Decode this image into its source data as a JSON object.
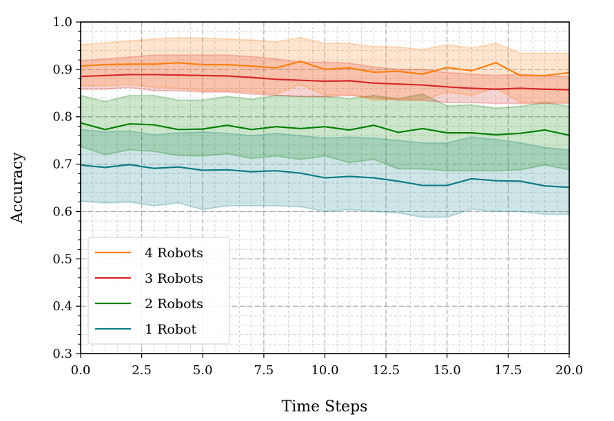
{
  "chart_data": {
    "type": "line",
    "title": "",
    "xlabel": "Time Steps",
    "ylabel": "Accuracy",
    "xlim": [
      0,
      20
    ],
    "ylim": [
      0.3,
      1.0
    ],
    "xticks": [
      "0.0",
      "2.5",
      "5.0",
      "7.5",
      "10.0",
      "12.5",
      "15.0",
      "17.5",
      "20.0"
    ],
    "yticks": [
      "0.3",
      "0.4",
      "0.5",
      "0.6",
      "0.7",
      "0.8",
      "0.9",
      "1.0"
    ],
    "grid": true,
    "legend_position": "lower-left",
    "x": [
      0,
      1,
      2,
      3,
      4,
      5,
      6,
      7,
      8,
      9,
      10,
      11,
      12,
      13,
      14,
      15,
      16,
      17,
      18,
      19,
      20
    ],
    "series": [
      {
        "name": "4 Robots",
        "color": "#ff7f0e",
        "values": [
          0.907,
          0.91,
          0.911,
          0.911,
          0.914,
          0.91,
          0.91,
          0.907,
          0.903,
          0.917,
          0.9,
          0.903,
          0.894,
          0.896,
          0.89,
          0.904,
          0.897,
          0.914,
          0.887,
          0.887,
          0.893
        ],
        "upper": [
          0.952,
          0.956,
          0.96,
          0.964,
          0.967,
          0.966,
          0.964,
          0.962,
          0.958,
          0.967,
          0.955,
          0.955,
          0.948,
          0.947,
          0.942,
          0.952,
          0.945,
          0.955,
          0.934,
          0.934,
          0.934
        ],
        "lower": [
          0.865,
          0.865,
          0.868,
          0.862,
          0.86,
          0.855,
          0.855,
          0.852,
          0.848,
          0.868,
          0.845,
          0.848,
          0.835,
          0.838,
          0.835,
          0.852,
          0.845,
          0.86,
          0.83,
          0.83,
          0.832
        ]
      },
      {
        "name": "3 Robots",
        "color": "#d62728",
        "values": [
          0.885,
          0.887,
          0.889,
          0.889,
          0.888,
          0.887,
          0.886,
          0.883,
          0.879,
          0.877,
          0.875,
          0.876,
          0.871,
          0.869,
          0.867,
          0.863,
          0.86,
          0.858,
          0.86,
          0.858,
          0.857
        ],
        "upper": [
          0.918,
          0.922,
          0.926,
          0.93,
          0.93,
          0.93,
          0.93,
          0.927,
          0.922,
          0.915,
          0.915,
          0.913,
          0.905,
          0.9,
          0.9,
          0.893,
          0.89,
          0.887,
          0.89,
          0.886,
          0.885
        ],
        "lower": [
          0.858,
          0.858,
          0.862,
          0.855,
          0.855,
          0.852,
          0.852,
          0.848,
          0.845,
          0.843,
          0.842,
          0.845,
          0.84,
          0.835,
          0.835,
          0.83,
          0.83,
          0.828,
          0.828,
          0.828,
          0.828
        ]
      },
      {
        "name": "2 Robots",
        "color": "#008000",
        "values": [
          0.787,
          0.773,
          0.785,
          0.783,
          0.773,
          0.774,
          0.782,
          0.773,
          0.779,
          0.775,
          0.779,
          0.772,
          0.782,
          0.767,
          0.775,
          0.766,
          0.766,
          0.762,
          0.765,
          0.772,
          0.761
        ],
        "upper": [
          0.845,
          0.832,
          0.845,
          0.845,
          0.835,
          0.835,
          0.843,
          0.837,
          0.845,
          0.843,
          0.843,
          0.838,
          0.845,
          0.838,
          0.848,
          0.823,
          0.825,
          0.818,
          0.822,
          0.83,
          0.822
        ],
        "lower": [
          0.737,
          0.72,
          0.73,
          0.727,
          0.718,
          0.717,
          0.722,
          0.712,
          0.717,
          0.71,
          0.717,
          0.703,
          0.71,
          0.69,
          0.69,
          0.686,
          0.686,
          0.686,
          0.688,
          0.698,
          0.688
        ]
      },
      {
        "name": "1 Robot",
        "color": "#0b7b86",
        "values": [
          0.698,
          0.693,
          0.699,
          0.691,
          0.694,
          0.687,
          0.688,
          0.684,
          0.686,
          0.681,
          0.671,
          0.674,
          0.671,
          0.664,
          0.655,
          0.655,
          0.669,
          0.665,
          0.664,
          0.654,
          0.651
        ],
        "upper": [
          0.773,
          0.768,
          0.77,
          0.762,
          0.766,
          0.768,
          0.765,
          0.76,
          0.765,
          0.76,
          0.755,
          0.757,
          0.755,
          0.75,
          0.745,
          0.745,
          0.757,
          0.752,
          0.745,
          0.735,
          0.73
        ],
        "lower": [
          0.622,
          0.618,
          0.62,
          0.612,
          0.618,
          0.604,
          0.612,
          0.612,
          0.612,
          0.61,
          0.6,
          0.604,
          0.6,
          0.597,
          0.588,
          0.588,
          0.605,
          0.6,
          0.6,
          0.594,
          0.594
        ]
      }
    ]
  }
}
